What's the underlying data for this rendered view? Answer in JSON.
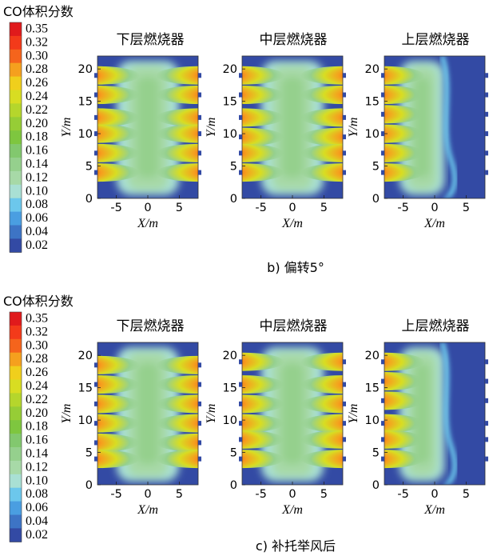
{
  "colorbar": {
    "title": "CO体积分数",
    "levels": [
      "0.35",
      "0.32",
      "0.30",
      "0.28",
      "0.26",
      "0.24",
      "0.22",
      "0.20",
      "0.18",
      "0.16",
      "0.14",
      "0.12",
      "0.10",
      "0.08",
      "0.06",
      "0.04",
      "0.02"
    ],
    "colors": [
      "#e01a1c",
      "#f33a1a",
      "#f5641c",
      "#f5a01e",
      "#f0cf1c",
      "#d8dd22",
      "#b5d62c",
      "#96cd36",
      "#7ec63f",
      "#82c86e",
      "#95d08d",
      "#a7d9a7",
      "#a9e0d4",
      "#6cc7ec",
      "#4a9ee1",
      "#3d74c5",
      "#334aa4"
    ]
  },
  "panels": [
    {
      "title": "下层燃烧器"
    },
    {
      "title": "中层燃烧器"
    },
    {
      "title": "上层燃烧器"
    }
  ],
  "axes": {
    "x_label": "X/m",
    "y_label": "Y/m",
    "x_ticks": [
      "-5",
      "0",
      "5"
    ],
    "y_ticks": [
      "0",
      "5",
      "10",
      "15",
      "20"
    ]
  },
  "captions": {
    "b": "b) 偏转5°",
    "c": "c) 补托举风后"
  },
  "chart_data": [
    {
      "type": "heatmap",
      "title": "下层燃烧器",
      "caption": "b) 偏转5°",
      "xlabel": "X/m",
      "ylabel": "Y/m",
      "xlim": [
        -8,
        8
      ],
      "ylim": [
        0,
        22
      ],
      "colorbar_title": "CO体积分数",
      "colorbar_range": [
        0.02,
        0.35
      ],
      "high_co_bands_y": [
        19,
        16,
        12.5,
        10,
        7,
        4
      ],
      "band_sides": "both"
    },
    {
      "type": "heatmap",
      "title": "中层燃烧器",
      "caption": "b) 偏转5°",
      "xlabel": "X/m",
      "ylabel": "Y/m",
      "xlim": [
        -8,
        8
      ],
      "ylim": [
        0,
        22
      ],
      "colorbar_title": "CO体积分数",
      "colorbar_range": [
        0.02,
        0.35
      ],
      "high_co_bands_y": [
        19,
        16,
        12.5,
        9.5,
        7,
        4
      ],
      "band_sides": "both"
    },
    {
      "type": "heatmap",
      "title": "上层燃烧器",
      "caption": "b) 偏转5°",
      "xlabel": "X/m",
      "ylabel": "Y/m",
      "xlim": [
        -8,
        8
      ],
      "ylim": [
        0,
        22
      ],
      "colorbar_title": "CO体积分数",
      "colorbar_range": [
        0.02,
        0.35
      ],
      "high_co_bands_y": [
        19,
        16,
        13,
        10,
        7,
        4
      ],
      "band_sides": "left"
    },
    {
      "type": "heatmap",
      "title": "下层燃烧器",
      "caption": "c) 补托举风后",
      "xlabel": "X/m",
      "ylabel": "Y/m",
      "xlim": [
        -8,
        8
      ],
      "ylim": [
        0,
        22
      ],
      "colorbar_title": "CO体积分数",
      "colorbar_range": [
        0.02,
        0.35
      ],
      "high_co_bands_y": [
        18.5,
        15.5,
        12.5,
        9.5,
        6.5,
        4
      ],
      "band_sides": "both"
    },
    {
      "type": "heatmap",
      "title": "中层燃烧器",
      "caption": "c) 补托举风后",
      "xlabel": "X/m",
      "ylabel": "Y/m",
      "xlim": [
        -8,
        8
      ],
      "ylim": [
        0,
        22
      ],
      "colorbar_title": "CO体积分数",
      "colorbar_range": [
        0.02,
        0.35
      ],
      "high_co_bands_y": [
        19,
        15.5,
        12.5,
        9.5,
        7,
        4
      ],
      "band_sides": "both"
    },
    {
      "type": "heatmap",
      "title": "上层燃烧器",
      "caption": "c) 补托举风后",
      "xlabel": "X/m",
      "ylabel": "Y/m",
      "xlim": [
        -8,
        8
      ],
      "ylim": [
        0,
        22
      ],
      "colorbar_title": "CO体积分数",
      "colorbar_range": [
        0.02,
        0.35
      ],
      "high_co_bands_y": [
        19,
        16,
        13,
        9.5,
        7,
        4
      ],
      "band_sides": "left"
    }
  ]
}
